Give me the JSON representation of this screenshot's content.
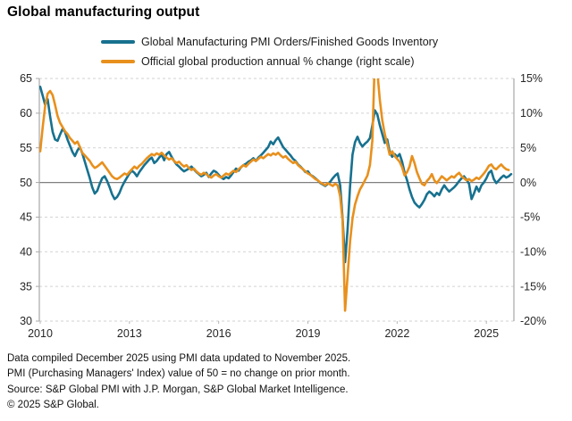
{
  "title": "Global manufacturing output",
  "legend": [
    {
      "label": "Global Manufacturing PMI Orders/Finished Goods Inventory",
      "color": "#17718f",
      "swatch_icon": "line-swatch"
    },
    {
      "label": "Official global production annual % change (right scale)",
      "color": "#e8901d",
      "swatch_icon": "line-swatch"
    }
  ],
  "footnotes": [
    "Data compiled December 2025 using PMI data updated to November 2025.",
    "PMI (Purchasing Managers' Index) value of 50 = no change on prior month.",
    "Source: S&P Global PMI with J.P. Morgan, S&P Global Market Intelligence.",
    "© 2025 S&P Global."
  ],
  "chart_data": {
    "type": "line",
    "frequency": "monthly",
    "x_start": "2010-01",
    "x_end": "2025-11",
    "x_tick_labels": [
      "2010",
      "2013",
      "2016",
      "2019",
      "2022",
      "2025"
    ],
    "x_tick_year_offsets": [
      0,
      3,
      6,
      9,
      12,
      15
    ],
    "grid": "horizontal-dashed",
    "baseline_left_value": 50,
    "baseline_right_value": 0,
    "y_left": {
      "range": [
        30,
        65
      ],
      "ticks": [
        "65",
        "60",
        "55",
        "50",
        "45",
        "40",
        "35",
        "30"
      ],
      "tick_values": [
        65,
        60,
        55,
        50,
        45,
        40,
        35,
        30
      ]
    },
    "y_right": {
      "range": [
        -20,
        15
      ],
      "ticks": [
        "15%",
        "10%",
        "5%",
        "0%",
        "-5%",
        "-10%",
        "-15%",
        "-20%"
      ],
      "tick_values": [
        15,
        10,
        5,
        0,
        -5,
        -10,
        -15,
        -20
      ]
    },
    "legend_position": "top",
    "series": [
      {
        "name": "Global Manufacturing PMI Orders/Finished Goods Inventory",
        "axis": "left",
        "color": "#17718f",
        "values": [
          63.8,
          62.5,
          61.2,
          62.0,
          59.5,
          57.3,
          56.2,
          56.0,
          56.9,
          57.7,
          57.3,
          56.2,
          55.3,
          54.4,
          53.8,
          54.6,
          55.1,
          54.2,
          53.0,
          51.8,
          50.6,
          49.3,
          48.4,
          48.8,
          49.8,
          50.6,
          50.9,
          50.2,
          49.3,
          48.3,
          47.6,
          47.9,
          48.5,
          49.4,
          50.1,
          50.7,
          51.3,
          51.7,
          51.4,
          50.9,
          51.5,
          52.0,
          52.5,
          52.9,
          53.3,
          53.6,
          52.8,
          53.1,
          53.6,
          54.0,
          53.2,
          54.1,
          54.4,
          53.7,
          53.1,
          52.6,
          52.3,
          51.9,
          51.6,
          51.8,
          52.0,
          52.3,
          51.9,
          51.5,
          51.2,
          50.9,
          51.1,
          51.4,
          50.8,
          51.3,
          51.7,
          51.5,
          51.1,
          50.7,
          50.5,
          50.8,
          50.6,
          51.0,
          51.5,
          52.0,
          51.7,
          52.2,
          52.5,
          52.7,
          53.0,
          53.2,
          53.5,
          53.1,
          53.6,
          53.9,
          54.3,
          54.7,
          55.1,
          55.9,
          55.5,
          56.1,
          56.5,
          55.8,
          55.1,
          54.7,
          54.3,
          53.9,
          53.4,
          53.1,
          52.6,
          52.3,
          51.9,
          51.5,
          51.6,
          51.1,
          50.9,
          50.6,
          50.3,
          49.9,
          49.7,
          49.5,
          49.8,
          50.1,
          50.6,
          51.0,
          51.3,
          49.6,
          44.8,
          38.5,
          43.2,
          49.5,
          54.0,
          55.8,
          56.6,
          55.7,
          55.2,
          55.6,
          55.9,
          56.4,
          58.2,
          60.4,
          59.8,
          58.3,
          57.0,
          55.7,
          56.2,
          54.4,
          53.7,
          54.1,
          53.7,
          54.1,
          53.0,
          51.4,
          50.3,
          49.0,
          47.9,
          47.1,
          46.7,
          46.4,
          46.9,
          47.5,
          48.3,
          48.7,
          48.4,
          48.0,
          48.5,
          48.2,
          49.0,
          49.6,
          49.1,
          48.7,
          49.0,
          49.3,
          49.7,
          50.2,
          50.6,
          50.9,
          50.4,
          49.8,
          47.6,
          48.4,
          49.4,
          48.7,
          49.6,
          50.0,
          50.6,
          51.4,
          51.7,
          50.5,
          49.9,
          50.3,
          50.7,
          51.0,
          50.7,
          50.9,
          51.2
        ]
      },
      {
        "name": "Official global production annual % change (right scale)",
        "axis": "right",
        "color": "#e8901d",
        "values": [
          4.5,
          8.0,
          11.0,
          12.8,
          13.2,
          12.6,
          11.2,
          9.6,
          8.6,
          8.0,
          7.4,
          7.0,
          6.4,
          6.0,
          5.6,
          5.9,
          5.1,
          4.3,
          3.9,
          3.5,
          3.1,
          2.5,
          2.1,
          2.3,
          2.6,
          2.9,
          2.4,
          1.9,
          1.4,
          0.9,
          0.6,
          0.5,
          0.7,
          1.0,
          1.3,
          1.1,
          1.5,
          1.9,
          2.3,
          2.0,
          2.4,
          2.7,
          3.1,
          3.5,
          3.8,
          4.1,
          3.9,
          4.2,
          4.0,
          4.3,
          3.9,
          3.6,
          3.3,
          3.5,
          3.1,
          2.8,
          3.0,
          2.6,
          2.3,
          2.5,
          2.1,
          1.8,
          2.0,
          1.6,
          1.3,
          1.1,
          1.4,
          1.2,
          0.9,
          0.7,
          1.0,
          1.2,
          0.9,
          0.7,
          1.0,
          1.3,
          1.1,
          1.4,
          1.7,
          1.5,
          1.9,
          2.2,
          2.5,
          2.3,
          2.7,
          3.0,
          3.3,
          3.1,
          3.4,
          3.7,
          3.5,
          3.8,
          4.1,
          3.9,
          4.2,
          4.0,
          4.3,
          3.9,
          3.6,
          3.8,
          3.4,
          3.1,
          2.8,
          3.0,
          2.5,
          2.2,
          1.9,
          1.6,
          1.3,
          1.1,
          0.8,
          0.5,
          0.3,
          0.0,
          -0.2,
          -0.4,
          -0.1,
          -0.3,
          -0.5,
          -0.2,
          -0.4,
          -2.0,
          -5.5,
          -18.5,
          -13.5,
          -8.5,
          -5.2,
          -3.2,
          -2.0,
          -1.0,
          -0.4,
          0.3,
          1.0,
          2.5,
          6.0,
          18.0,
          16.0,
          12.0,
          9.0,
          7.0,
          5.5,
          4.0,
          4.5,
          3.8,
          3.4,
          3.0,
          2.2,
          1.0,
          1.5,
          2.3,
          3.8,
          2.8,
          1.5,
          0.6,
          -0.2,
          -0.4,
          0.2,
          0.6,
          1.2,
          0.3,
          -0.1,
          0.4,
          0.9,
          0.6,
          0.3,
          0.6,
          0.9,
          0.7,
          1.1,
          1.4,
          0.9,
          0.6,
          0.3,
          0.5,
          0.2,
          0.4,
          0.7,
          0.5,
          0.9,
          1.3,
          1.8,
          2.4,
          2.6,
          2.1,
          1.9,
          2.3,
          2.6,
          2.2,
          1.9,
          1.8
        ]
      }
    ]
  }
}
